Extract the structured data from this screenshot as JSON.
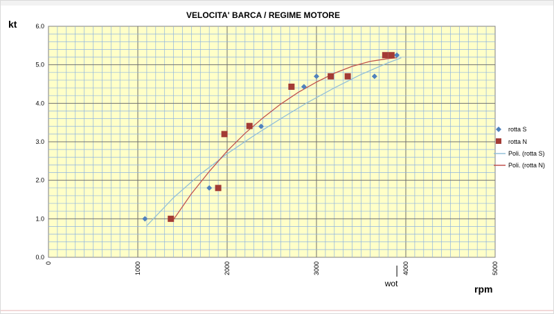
{
  "chart_data": {
    "type": "scatter",
    "title": "VELOCITA'  BARCA  / REGIME  MOTORE",
    "ylabel": "kt",
    "xlabel": "rpm",
    "xlim": [
      0,
      5000
    ],
    "ylim": [
      0,
      6
    ],
    "x_ticks": [
      "0",
      "1000",
      "2000",
      "3000",
      "4000",
      "5000"
    ],
    "y_ticks": [
      "0.0",
      "1.0",
      "2.0",
      "3.0",
      "4.0",
      "5.0",
      "6.0"
    ],
    "annotation": "wot",
    "annotation_x": 3900,
    "grid": true,
    "legend_position": "right",
    "plot_background": "#ffffc8",
    "series": [
      {
        "name": "rotta S",
        "kind": "points",
        "marker": "diamond",
        "color": "#4f81bd",
        "x": [
          1080,
          1800,
          2380,
          2860,
          3000,
          3650,
          3900
        ],
        "y": [
          1.0,
          1.8,
          3.4,
          4.43,
          4.7,
          4.7,
          5.25
        ]
      },
      {
        "name": "rotta N",
        "kind": "points",
        "marker": "square",
        "color": "#a33b35",
        "x": [
          1370,
          1900,
          1970,
          2250,
          2720,
          3160,
          3350,
          3770,
          3840
        ],
        "y": [
          1.0,
          1.8,
          3.2,
          3.41,
          4.43,
          4.7,
          4.7,
          5.25,
          5.25
        ]
      },
      {
        "name": "Poli. (rotta S)",
        "kind": "trendline",
        "color": "#93c0d8",
        "x": [
          1100,
          1400,
          1700,
          2000,
          2300,
          2600,
          2900,
          3200,
          3500,
          3800,
          3950
        ],
        "y": [
          0.82,
          1.55,
          2.16,
          2.69,
          3.16,
          3.6,
          4.02,
          4.4,
          4.75,
          5.05,
          5.18
        ]
      },
      {
        "name": "Poli. (rotta N)",
        "kind": "trendline",
        "color": "#c0504d",
        "x": [
          1400,
          1600,
          1800,
          2000,
          2200,
          2400,
          2600,
          2800,
          3000,
          3200,
          3400,
          3600,
          3800,
          3900
        ],
        "y": [
          0.98,
          1.65,
          2.23,
          2.76,
          3.22,
          3.62,
          3.98,
          4.29,
          4.55,
          4.78,
          4.96,
          5.09,
          5.16,
          5.18
        ]
      }
    ]
  }
}
